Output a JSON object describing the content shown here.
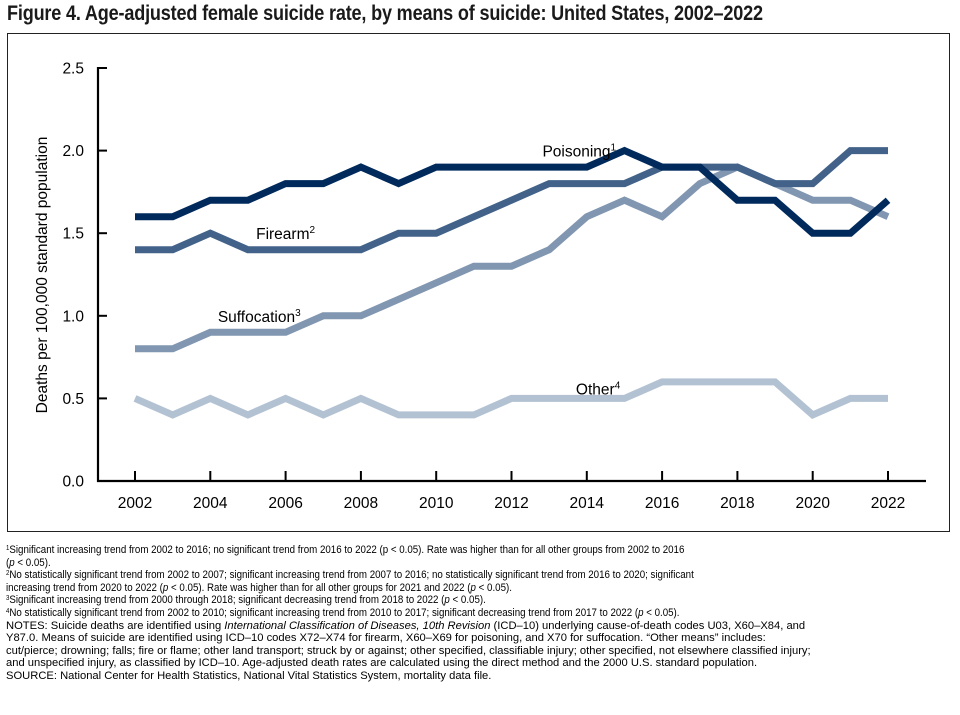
{
  "title": "Figure 4. Age-adjusted female suicide rate, by means of suicide: United States, 2002–2022",
  "chart_data": {
    "type": "line",
    "title": "Figure 4. Age-adjusted female suicide rate, by means of suicide: United States, 2002–2022",
    "xlabel": "",
    "ylabel": "Deaths per 100,000 standard population",
    "x": [
      2002,
      2003,
      2004,
      2005,
      2006,
      2007,
      2008,
      2009,
      2010,
      2011,
      2012,
      2013,
      2014,
      2015,
      2016,
      2017,
      2018,
      2019,
      2020,
      2021,
      2022
    ],
    "xticks": [
      "2002",
      "2004",
      "2006",
      "2008",
      "2010",
      "2012",
      "2014",
      "2016",
      "2018",
      "2020",
      "2022"
    ],
    "yticks": [
      "0.0",
      "0.5",
      "1.0",
      "1.5",
      "2.0",
      "2.5"
    ],
    "ylim": [
      0,
      2.5
    ],
    "xlim": [
      2002,
      2022
    ],
    "grid": false,
    "legend": "inline-labels",
    "series": [
      {
        "name": "Poisoning",
        "footnote": "1",
        "color": "#002a5c",
        "values": [
          1.6,
          1.6,
          1.7,
          1.7,
          1.8,
          1.8,
          1.9,
          1.8,
          1.9,
          1.9,
          1.9,
          1.9,
          1.9,
          2.0,
          1.9,
          1.9,
          1.7,
          1.7,
          1.5,
          1.5,
          1.7
        ],
        "label_at": {
          "x": 2013.8,
          "y": 2.0
        }
      },
      {
        "name": "Firearm",
        "footnote": "2",
        "color": "#426289",
        "values": [
          1.4,
          1.4,
          1.5,
          1.4,
          1.4,
          1.4,
          1.4,
          1.5,
          1.5,
          1.6,
          1.7,
          1.8,
          1.8,
          1.8,
          1.9,
          1.9,
          1.9,
          1.8,
          1.8,
          2.0,
          2.0
        ],
        "label_at": {
          "x": 2006,
          "y": 1.5
        }
      },
      {
        "name": "Suffocation",
        "footnote": "3",
        "color": "#8196b0",
        "values": [
          0.8,
          0.8,
          0.9,
          0.9,
          0.9,
          1.0,
          1.0,
          1.1,
          1.2,
          1.3,
          1.3,
          1.4,
          1.6,
          1.7,
          1.6,
          1.8,
          1.9,
          1.8,
          1.7,
          1.7,
          1.6
        ],
        "label_at": {
          "x": 2005.3,
          "y": 1.0
        }
      },
      {
        "name": "Other",
        "footnote": "4",
        "color": "#b3c2d3",
        "values": [
          0.5,
          0.4,
          0.5,
          0.4,
          0.5,
          0.4,
          0.5,
          0.4,
          0.4,
          0.4,
          0.5,
          0.5,
          0.5,
          0.5,
          0.6,
          0.6,
          0.6,
          0.6,
          0.4,
          0.5,
          0.5
        ],
        "label_at": {
          "x": 2014.3,
          "y": 0.56
        }
      }
    ]
  },
  "footnotes": [
    {
      "mark": "1",
      "text": "Significant increasing trend from 2002 to 2016; no significant trend from 2016 to 2022 (p < 0.05). Rate was higher than for all other groups from 2002 to 2016",
      "text2_pre": "(",
      "text2_italic": "p",
      "text2_post": " < 0.05)."
    },
    {
      "mark": "2",
      "text": "No statistically significant trend from 2002 to 2007; significant increasing trend from 2007 to 2016; no statistically significant trend from 2016 to 2020; significant",
      "text2_pre": "increasing trend from 2020 to 2022 (",
      "text2_italic": "p",
      "text2_mid": " < 0.05). Rate was higher than for all other groups for 2021 and 2022 (",
      "text2_italic2": "p",
      "text2_post": " < 0.05)."
    },
    {
      "mark": "3",
      "text_pre": "Significant increasing trend from 2000 through 2018; significant decreasing trend from 2018 to 2022 (",
      "italic": "p",
      "text_post": " < 0.05)."
    },
    {
      "mark": "4",
      "text_pre": "No statistically significant trend from 2002 to 2010; significant increasing trend from 2010 to 2017; significant decreasing trend from 2017 to 2022 (",
      "italic": "p",
      "text_post": " < 0.05)."
    }
  ],
  "notes": {
    "line1_pre": "NOTES: Suicide deaths are identified using ",
    "line1_italic": "International Classification of Diseases, 10th Revision",
    "line1_post": " (ICD–10) underlying cause-of-death codes U03, X60–X84, and",
    "line2": "Y87.0. Means of suicide are identified using ICD–10 codes X72–X74 for firearm, X60–X69 for poisoning, and X70 for suffocation. “Other means” includes:",
    "line3": "cut/pierce; drowning; falls; fire or flame; other land transport; struck by or against; other specified, classifiable injury; other specified, not elsewhere classified injury;",
    "line4": "and unspecified injury, as classified by ICD–10. Age-adjusted death rates are calculated using the direct method and the 2000 U.S. standard population.",
    "source": "SOURCE: National Center for Health Statistics, National Vital Statistics System, mortality data file."
  }
}
